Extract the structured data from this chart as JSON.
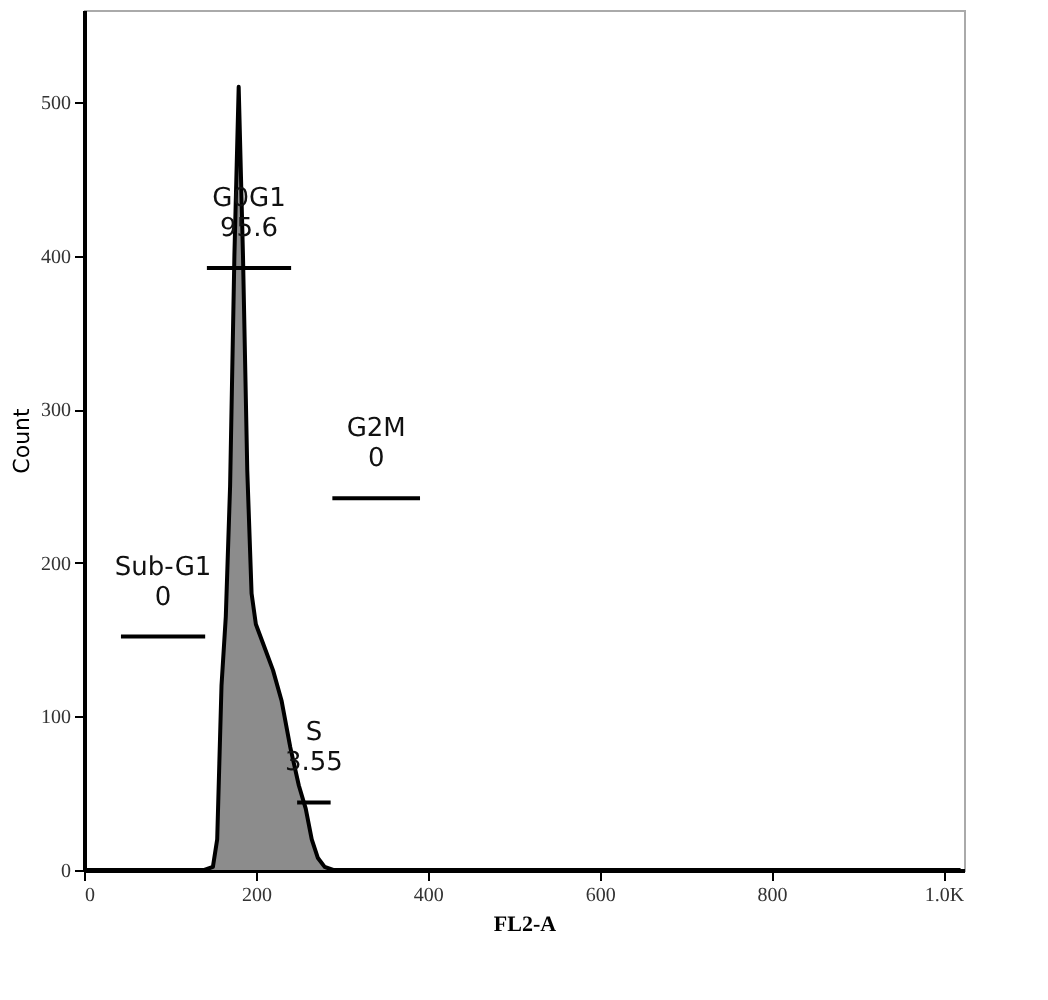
{
  "chart_data": {
    "type": "area",
    "xlabel": "FL2-A",
    "ylabel": "Count",
    "xlim": [
      0,
      1024
    ],
    "ylim": [
      0,
      560
    ],
    "xticks": [
      0,
      200,
      400,
      600,
      800,
      {
        "value": 1000,
        "label": "1.0K"
      }
    ],
    "yticks": [
      0,
      100,
      200,
      300,
      400,
      500
    ],
    "grid": false,
    "series": [
      {
        "color": "#8c8c8c",
        "x": [
          0,
          140,
          150,
          155,
          160,
          165,
          170,
          175,
          180,
          185,
          190,
          195,
          200,
          210,
          220,
          230,
          240,
          250,
          258,
          265,
          272,
          280,
          290,
          1020
        ],
        "values": [
          0,
          0,
          2,
          20,
          120,
          165,
          250,
          400,
          510,
          400,
          260,
          180,
          160,
          145,
          130,
          110,
          80,
          55,
          40,
          20,
          8,
          2,
          0,
          0
        ]
      },
      {
        "type": "line",
        "color": "#000000",
        "x": [
          43,
          141
        ],
        "values": [
          152,
          152
        ]
      },
      {
        "type": "line",
        "color": "#000000",
        "x": [
          143,
          241
        ],
        "values": [
          392,
          392
        ]
      },
      {
        "type": "line",
        "color": "#000000",
        "x": [
          289,
          391
        ],
        "values": [
          242,
          242
        ]
      },
      {
        "type": "line",
        "color": "#000000",
        "x": [
          248,
          287
        ],
        "values": [
          44,
          44
        ]
      }
    ],
    "annotations": [
      {
        "text": "Sub-G1\n0",
        "x": 92,
        "y": 152
      },
      {
        "text": "G0G1\n95.6",
        "x": 192,
        "y": 392
      },
      {
        "text": "G2M\n0",
        "x": 340,
        "y": 242
      },
      {
        "text": "S\n3.55",
        "x": 267.5,
        "y": 44
      }
    ]
  }
}
